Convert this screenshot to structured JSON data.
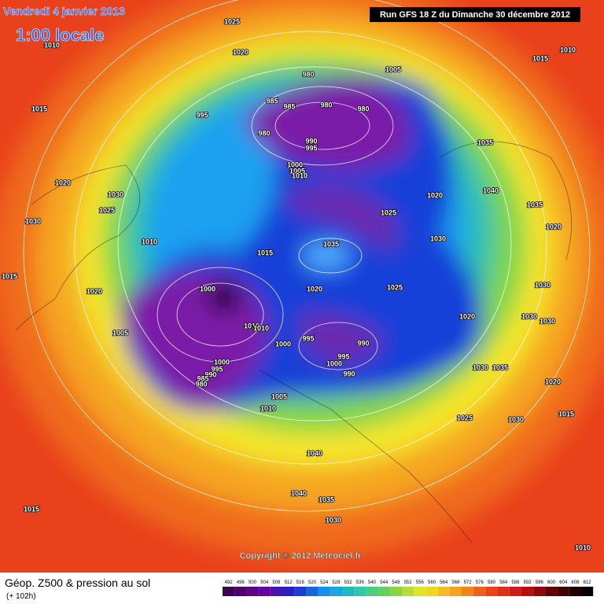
{
  "header": {
    "date": "Vendredi 4 janvier 2013",
    "time": "1:00 locale",
    "run": "Run GFS 18 Z du Dimanche 30 décembre 2012"
  },
  "map": {
    "copyright": "Copyright © 2012 Meteociel.fr",
    "isobar_labels": [
      "1025",
      "1010",
      "1020",
      "1015",
      "1010",
      "980",
      "1005",
      "985",
      "985",
      "980",
      "980",
      "995",
      "1015",
      "980",
      "990",
      "995",
      "1035",
      "1000",
      "1005",
      "1010",
      "1020",
      "1030",
      "1040",
      "1020",
      "1025",
      "1025",
      "1035",
      "1030",
      "1020",
      "1030",
      "1010",
      "1035",
      "1015",
      "1015",
      "1000",
      "1020",
      "1025",
      "1030",
      "1020",
      "1020",
      "1030",
      "1030",
      "1010",
      "1010",
      "1005",
      "995",
      "990",
      "1000",
      "995",
      "1000",
      "1030",
      "1035",
      "990",
      "1000",
      "995",
      "990",
      "985",
      "980",
      "1020",
      "1005",
      "1010",
      "1015",
      "1025",
      "1030",
      "1040",
      "1040",
      "1035",
      "1015",
      "1030",
      "1010"
    ]
  },
  "legend": {
    "title": "Géop. Z500 & pression au sol",
    "lead": "(+ 102h)",
    "scale": [
      492,
      496,
      500,
      504,
      508,
      512,
      516,
      520,
      524,
      528,
      532,
      536,
      540,
      544,
      548,
      552,
      556,
      560,
      564,
      568,
      572,
      576,
      580,
      584,
      588,
      592,
      596,
      600,
      604,
      608,
      612
    ]
  }
}
